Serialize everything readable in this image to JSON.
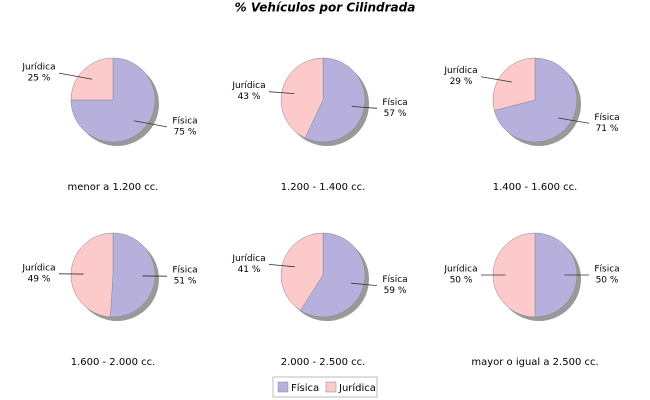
{
  "title": "% Vehículos por Cilindrada",
  "chart_data": [
    {
      "type": "pie",
      "title": "menor a 1.200 cc.",
      "categories": [
        "Física",
        "Jurídica"
      ],
      "values": [
        75,
        25
      ],
      "value_labels": [
        "75 %",
        "25 %"
      ],
      "colors": [
        "#b8b0dc",
        "#fccacb"
      ]
    },
    {
      "type": "pie",
      "title": "1.200 - 1.400 cc.",
      "categories": [
        "Física",
        "Jurídica"
      ],
      "values": [
        57,
        43
      ],
      "value_labels": [
        "57 %",
        "43 %"
      ],
      "colors": [
        "#b8b0dc",
        "#fccacb"
      ]
    },
    {
      "type": "pie",
      "title": "1.400 - 1.600 cc.",
      "categories": [
        "Física",
        "Jurídica"
      ],
      "values": [
        71,
        29
      ],
      "value_labels": [
        "71 %",
        "29 %"
      ],
      "colors": [
        "#b8b0dc",
        "#fccacb"
      ]
    },
    {
      "type": "pie",
      "title": "1.600 - 2.000 cc.",
      "categories": [
        "Física",
        "Jurídica"
      ],
      "values": [
        51,
        49
      ],
      "value_labels": [
        "51 %",
        "49 %"
      ],
      "colors": [
        "#b8b0dc",
        "#fccacb"
      ]
    },
    {
      "type": "pie",
      "title": "2.000 - 2.500 cc.",
      "categories": [
        "Física",
        "Jurídica"
      ],
      "values": [
        59,
        41
      ],
      "value_labels": [
        "59 %",
        "41 %"
      ],
      "colors": [
        "#b8b0dc",
        "#fccacb"
      ]
    },
    {
      "type": "pie",
      "title": "mayor o igual a 2.500 cc.",
      "categories": [
        "Física",
        "Jurídica"
      ],
      "values": [
        50,
        50
      ],
      "value_labels": [
        "50 %",
        "50 %"
      ],
      "colors": [
        "#b8b0dc",
        "#fccacb"
      ]
    }
  ]
}
